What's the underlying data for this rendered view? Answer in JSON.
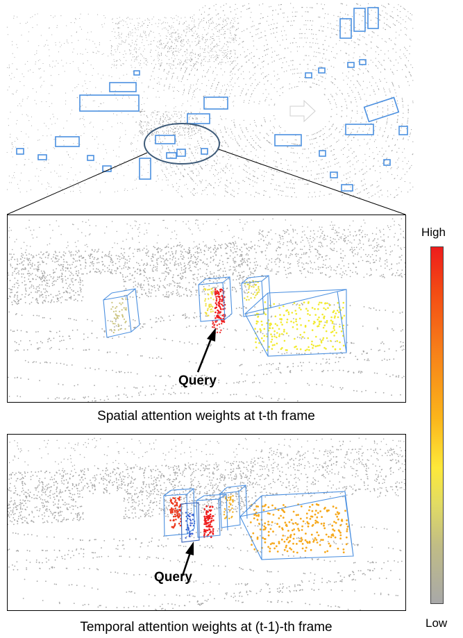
{
  "colors": {
    "box": "#4a8fe0",
    "ellipse": "#3d5a78",
    "points": "#9a9a9a",
    "high": "#ee1c1c",
    "mid": "#fbb51b",
    "low": "#a8a8a8"
  },
  "spatial_panel": {
    "query_label": "Query",
    "caption": "Spatial attention weights at t-th frame"
  },
  "temporal_panel": {
    "query_label": "Query",
    "caption": "Temporal attention weights at (t-1)-th frame"
  },
  "colorbar": {
    "high_label": "High",
    "low_label": "Low"
  }
}
